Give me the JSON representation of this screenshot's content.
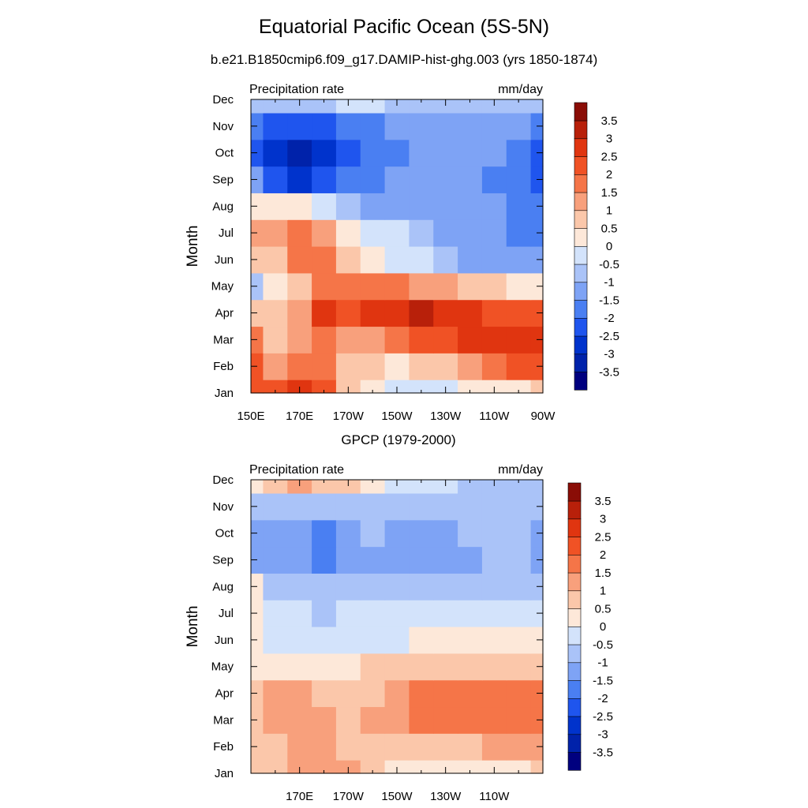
{
  "figure": {
    "title": "Equatorial Pacific Ocean (5S-5N)",
    "subtitle": "b.e21.B1850cmip6.f09_g17.DAMIP-hist-ghg.003 (yrs 1850-1874)",
    "panel2_title": "GPCP (1979-2000)"
  },
  "colorbar": {
    "colors": [
      "#00007f",
      "#0022aa",
      "#0033cc",
      "#1f55ee",
      "#4a7ff2",
      "#7ea3f5",
      "#aac3f8",
      "#d3e3fb",
      "#fde8d9",
      "#fbc7aa",
      "#f8a07c",
      "#f57548",
      "#f05225",
      "#e03510",
      "#b8200a",
      "#8a0d06"
    ],
    "labels": [
      "-3.5",
      "-3",
      "-2.5",
      "-2",
      "-1.5",
      "-1",
      "-0.5",
      "0",
      "0.5",
      "1",
      "1.5",
      "2",
      "2.5",
      "3",
      "3.5"
    ]
  },
  "chart_data": [
    {
      "type": "heatmap",
      "title": "Precipitation rate",
      "units": "mm/day",
      "ylabel": "Month",
      "x_tick_labels": [
        "150E",
        "170E",
        "170W",
        "150W",
        "130W",
        "110W",
        "90W"
      ],
      "y_tick_labels": [
        "Jan",
        "Feb",
        "Mar",
        "Apr",
        "May",
        "Jun",
        "Jul",
        "Aug",
        "Sep",
        "Oct",
        "Nov",
        "Dec"
      ],
      "x": [
        "150E",
        "160E",
        "170E",
        "180",
        "170W",
        "160W",
        "150W",
        "140W",
        "130W",
        "120W",
        "110W",
        "100W",
        "90W"
      ],
      "y": [
        "Jan",
        "Feb",
        "Mar",
        "Apr",
        "May",
        "Jun",
        "Jul",
        "Aug",
        "Sep",
        "Oct",
        "Nov",
        "Dec"
      ],
      "z": [
        [
          2.2,
          2.4,
          2.8,
          2.0,
          0.6,
          0.2,
          -0.1,
          -0.2,
          -0.1,
          0.2,
          0.3,
          0.4,
          0.5
        ],
        [
          2.0,
          1.3,
          1.8,
          1.5,
          0.7,
          0.5,
          0.4,
          0.5,
          0.8,
          1.2,
          1.6,
          2.0,
          2.2
        ],
        [
          1.5,
          0.8,
          1.0,
          1.6,
          1.4,
          1.4,
          1.8,
          2.0,
          2.4,
          2.6,
          2.6,
          2.6,
          2.6
        ],
        [
          0.8,
          0.6,
          1.0,
          2.6,
          2.4,
          2.5,
          2.8,
          3.2,
          2.9,
          2.6,
          2.3,
          2.1,
          2.1
        ],
        [
          -0.6,
          0.3,
          0.9,
          1.6,
          1.7,
          1.7,
          1.5,
          1.4,
          1.2,
          0.8,
          0.6,
          0.4,
          0.2
        ],
        [
          0.6,
          0.9,
          1.5,
          1.5,
          0.8,
          0.4,
          -0.1,
          -0.5,
          -0.9,
          -1.1,
          -1.3,
          -1.3,
          -1.5
        ],
        [
          1.2,
          1.4,
          1.5,
          1.0,
          0.3,
          -0.1,
          -0.5,
          -0.9,
          -1.1,
          -1.3,
          -1.5,
          -1.7,
          -1.7
        ],
        [
          0.4,
          0.3,
          0.1,
          -0.3,
          -0.7,
          -1.1,
          -1.3,
          -1.4,
          -1.5,
          -1.5,
          -1.5,
          -1.6,
          -1.6
        ],
        [
          -1.4,
          -2.3,
          -2.6,
          -2.5,
          -2.0,
          -1.6,
          -1.5,
          -1.4,
          -1.4,
          -1.5,
          -1.6,
          -2.0,
          -2.2
        ],
        [
          -2.4,
          -3.0,
          -3.3,
          -3.0,
          -2.5,
          -1.8,
          -1.6,
          -1.5,
          -1.3,
          -1.3,
          -1.5,
          -1.9,
          -2.1
        ],
        [
          -2.0,
          -2.4,
          -2.5,
          -2.3,
          -2.0,
          -1.6,
          -1.5,
          -1.3,
          -1.2,
          -1.3,
          -1.4,
          -1.5,
          -1.6
        ],
        [
          -0.6,
          -0.9,
          -1.0,
          -0.7,
          -0.4,
          -0.5,
          -0.6,
          -0.6,
          -0.6,
          -0.6,
          -0.7,
          -0.8,
          -0.9
        ]
      ]
    },
    {
      "type": "heatmap",
      "title": "Precipitation rate",
      "units": "mm/day",
      "ylabel": "Month",
      "x_tick_labels": [
        "170E",
        "170W",
        "150W",
        "130W",
        "110W"
      ],
      "y_tick_labels": [
        "Jan",
        "Feb",
        "Mar",
        "Apr",
        "May",
        "Jun",
        "Jul",
        "Aug",
        "Sep",
        "Oct",
        "Nov",
        "Dec"
      ],
      "x": [
        "150E",
        "160E",
        "170E",
        "180",
        "170W",
        "160W",
        "150W",
        "140W",
        "130W",
        "120W",
        "110W",
        "100W",
        "90W"
      ],
      "y": [
        "Jan",
        "Feb",
        "Mar",
        "Apr",
        "May",
        "Jun",
        "Jul",
        "Aug",
        "Sep",
        "Oct",
        "Nov",
        "Dec"
      ],
      "z": [
        [
          0.6,
          0.8,
          1.1,
          1.3,
          1.0,
          0.6,
          0.3,
          0.2,
          0.1,
          0.2,
          0.3,
          0.4,
          0.5
        ],
        [
          0.6,
          0.9,
          1.4,
          1.3,
          0.6,
          0.6,
          0.6,
          0.7,
          0.8,
          0.9,
          1.0,
          1.2,
          1.3
        ],
        [
          0.5,
          1.1,
          1.3,
          1.2,
          0.9,
          1.0,
          1.3,
          1.6,
          1.8,
          1.7,
          1.6,
          1.7,
          1.7
        ],
        [
          0.5,
          1.0,
          1.0,
          0.7,
          0.6,
          0.8,
          1.3,
          1.5,
          1.7,
          1.7,
          1.6,
          1.7,
          1.6
        ],
        [
          0.4,
          0.2,
          0.1,
          0.4,
          0.4,
          0.5,
          0.7,
          0.8,
          0.9,
          0.9,
          0.9,
          0.9,
          0.9
        ],
        [
          0.4,
          -0.1,
          -0.2,
          -0.3,
          -0.3,
          -0.2,
          -0.1,
          0.0,
          0.1,
          0.2,
          0.3,
          0.3,
          0.4
        ],
        [
          0.3,
          -0.4,
          -0.5,
          -0.6,
          -0.5,
          -0.5,
          -0.4,
          -0.4,
          -0.4,
          -0.4,
          -0.4,
          -0.4,
          -0.4
        ],
        [
          0.0,
          -0.6,
          -0.8,
          -0.8,
          -0.7,
          -0.8,
          -0.8,
          -0.8,
          -0.9,
          -0.9,
          -0.8,
          -0.7,
          -0.6
        ],
        [
          -1.2,
          -1.2,
          -1.4,
          -1.9,
          -1.5,
          -1.1,
          -1.2,
          -1.3,
          -1.3,
          -1.2,
          -0.8,
          -0.9,
          -1.2
        ],
        [
          -1.1,
          -1.2,
          -1.5,
          -1.7,
          -1.2,
          -0.9,
          -1.2,
          -1.4,
          -1.3,
          -1.0,
          -0.7,
          -1.0,
          -1.3
        ],
        [
          -0.8,
          -0.8,
          -0.9,
          -0.9,
          -0.8,
          -0.7,
          -0.7,
          -0.7,
          -0.6,
          -0.6,
          -0.6,
          -0.8,
          -1.0
        ],
        [
          0.3,
          0.6,
          1.1,
          0.9,
          0.5,
          0.2,
          -0.2,
          -0.4,
          -0.5,
          -0.6,
          -0.7,
          -0.8,
          -0.8
        ]
      ]
    }
  ]
}
